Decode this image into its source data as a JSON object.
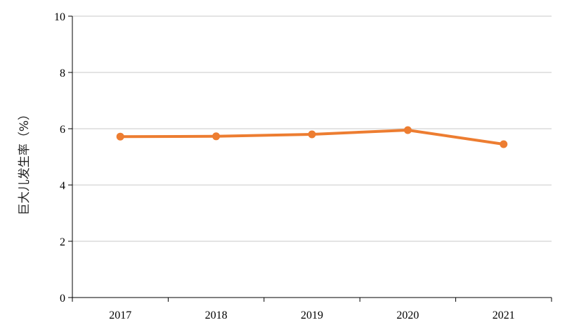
{
  "chart_data": {
    "type": "line",
    "title": "",
    "xlabel": "",
    "ylabel": "巨大儿发生率（%）",
    "categories": [
      "2017",
      "2018",
      "2019",
      "2020",
      "2021"
    ],
    "series": [
      {
        "values": [
          5.72,
          5.73,
          5.8,
          5.95,
          5.45
        ]
      }
    ],
    "ylim": [
      0,
      10
    ],
    "yticks": [
      "0",
      "2",
      "4",
      "6",
      "8",
      "10"
    ],
    "grid": true,
    "legend": "none",
    "colors": {
      "series": "#ED7D31",
      "grid": "#C8C8C8",
      "axis": "#000000"
    }
  }
}
